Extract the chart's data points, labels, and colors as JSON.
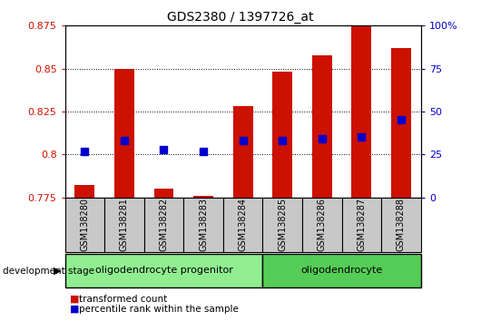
{
  "title": "GDS2380 / 1397726_at",
  "samples": [
    "GSM138280",
    "GSM138281",
    "GSM138282",
    "GSM138283",
    "GSM138284",
    "GSM138285",
    "GSM138286",
    "GSM138287",
    "GSM138288"
  ],
  "transformed_count": [
    0.782,
    0.85,
    0.78,
    0.776,
    0.828,
    0.848,
    0.858,
    0.875,
    0.862
  ],
  "percentile_rank": [
    27,
    33,
    28,
    27,
    33,
    33,
    34,
    35,
    45
  ],
  "ylim_left": [
    0.775,
    0.875
  ],
  "ylim_right": [
    0,
    100
  ],
  "yticks_left": [
    0.775,
    0.8,
    0.825,
    0.85,
    0.875
  ],
  "yticks_right": [
    0,
    25,
    50,
    75,
    100
  ],
  "groups": [
    {
      "label": "oligodendrocyte progenitor",
      "start": 0,
      "end": 4
    },
    {
      "label": "oligodendrocyte",
      "start": 5,
      "end": 8
    }
  ],
  "bar_color": "#CC1100",
  "dot_color": "#0000CC",
  "bar_bottom": 0.775,
  "bar_width": 0.5,
  "dot_size": 40,
  "tick_color_left": "#CC1100",
  "tick_color_right": "#0000CC",
  "group1_color": "#90EE90",
  "group2_color": "#55CC55",
  "sample_box_color": "#C8C8C8",
  "title_fontsize": 10,
  "tick_fontsize": 8,
  "label_fontsize": 7,
  "group_fontsize": 8
}
